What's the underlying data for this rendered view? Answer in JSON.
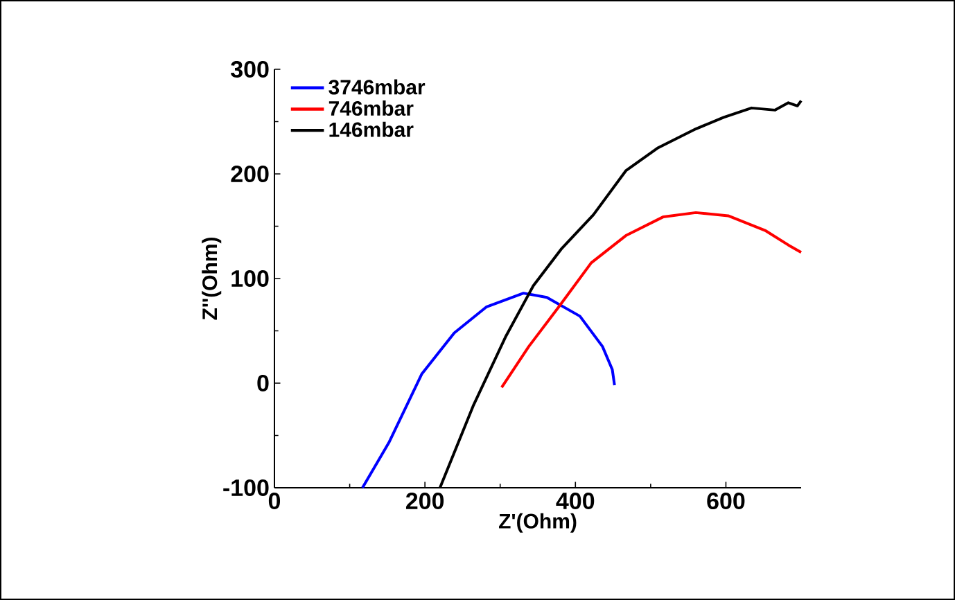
{
  "chart_data": {
    "type": "line",
    "xlabel": "Z'(Ohm)",
    "ylabel": "Z''(Ohm)",
    "xlim": [
      0,
      700
    ],
    "xticks": [
      0,
      200,
      400,
      600
    ],
    "ylim": [
      -100,
      300
    ],
    "yticks": [
      -100,
      0,
      100,
      200,
      300
    ],
    "grid": false,
    "legend": "top left",
    "marker": "none",
    "line_style": "solid",
    "series": [
      {
        "name": "3746mbar",
        "color": "#0000ff",
        "x": [
          117,
          152,
          196,
          239,
          282,
          331,
          362,
          406,
          436,
          449,
          452
        ],
        "values": [
          -100,
          -57,
          9,
          48,
          73,
          86,
          82,
          64,
          35,
          13,
          -2
        ]
      },
      {
        "name": "746mbar",
        "color": "#ff0000",
        "x": [
          302,
          338,
          378,
          421,
          467,
          517,
          560,
          603,
          652,
          683,
          700
        ],
        "values": [
          -4,
          35,
          73,
          115,
          141,
          159,
          163,
          160,
          146,
          132,
          125
        ]
      },
      {
        "name": "146mbar",
        "color": "#000000",
        "x": [
          220,
          264,
          307,
          344,
          381,
          424,
          467,
          510,
          560,
          597,
          634,
          665,
          683,
          695,
          700
        ],
        "values": [
          -100,
          -22,
          44,
          93,
          128,
          161,
          203,
          225,
          243,
          254,
          263,
          261,
          268,
          265,
          270
        ]
      }
    ]
  }
}
